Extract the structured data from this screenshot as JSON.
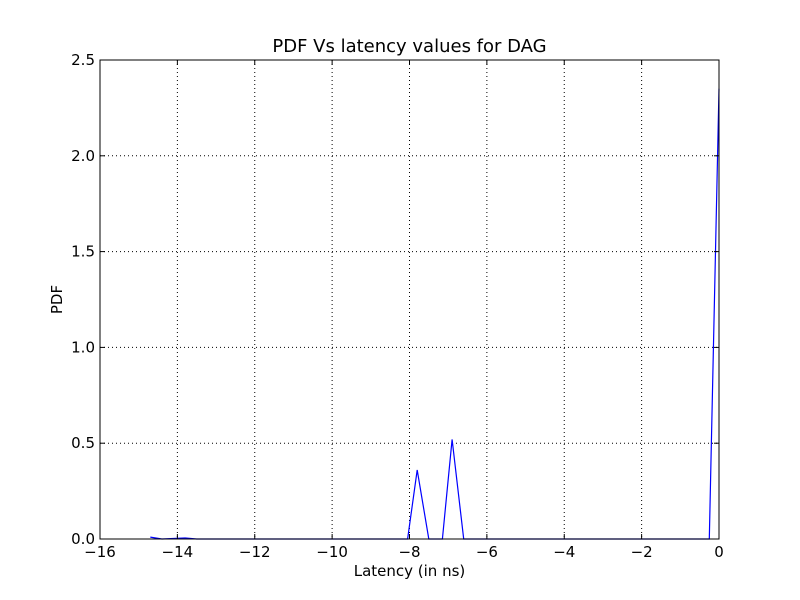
{
  "chart_data": {
    "type": "line",
    "title": "PDF Vs latency values for DAG",
    "xlabel": "Latency (in ns)",
    "ylabel": "PDF",
    "xlim": [
      -16,
      0
    ],
    "ylim": [
      0,
      2.5
    ],
    "xticks": [
      -16,
      -14,
      -12,
      -10,
      -8,
      -6,
      -4,
      -2,
      0
    ],
    "yticks": [
      0.0,
      0.5,
      1.0,
      1.5,
      2.0,
      2.5
    ],
    "xtick_labels": [
      "−16",
      "−14",
      "−12",
      "−10",
      "−8",
      "−6",
      "−4",
      "−2",
      "0"
    ],
    "ytick_labels": [
      "0.0",
      "0.5",
      "1.0",
      "1.5",
      "2.0",
      "2.5"
    ],
    "grid": true,
    "series": [
      {
        "color": "#0000ff",
        "x": [
          -14.7,
          -14.4,
          -13.8,
          -13.5,
          -8.05,
          -7.8,
          -7.5,
          -7.15,
          -6.9,
          -6.6,
          -0.25,
          0
        ],
        "y": [
          0.01,
          0.0,
          0.005,
          0.0,
          0.0,
          0.36,
          0.0,
          0.0,
          0.52,
          0.0,
          0.0,
          2.35
        ]
      }
    ]
  }
}
